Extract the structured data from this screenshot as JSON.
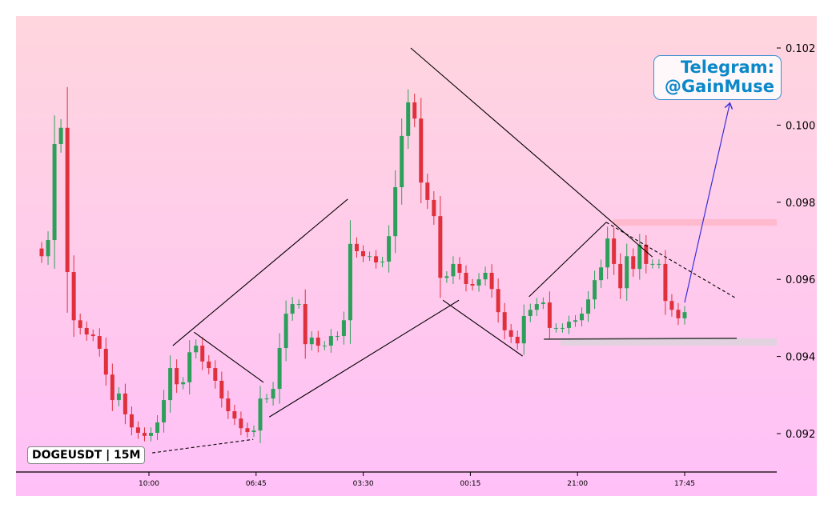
{
  "chart_data": {
    "type": "candlestick",
    "symbol_label": "DOGEUSDT | 15M",
    "ylim": [
      0.091,
      0.10283
    ],
    "y_ticks": [
      "0.092",
      "0.094",
      "0.096",
      "0.098",
      "0.100",
      "0.102"
    ],
    "x_ticks": [
      "10:00",
      "06:45",
      "03:30",
      "00:15",
      "21:00",
      "17:45"
    ],
    "grid": false,
    "colors": {
      "up": "#2ca05a",
      "down": "#e0303c",
      "background_top": "#ffd6de",
      "background_bottom": "#ffc0f8",
      "lines": "#000000",
      "arrow": "#3a2ee0",
      "resistance_zone": "#ffb6c8",
      "support_zone": "#ddd4dc",
      "telegram": "#0a88c8"
    },
    "close": [
      0.0966,
      0.09702,
      0.09951,
      0.09993,
      0.09619,
      0.09494,
      0.09474,
      0.09457,
      0.09453,
      0.0942,
      0.09353,
      0.09287,
      0.09304,
      0.0925,
      0.09216,
      0.09202,
      0.09194,
      0.09202,
      0.09229,
      0.09287,
      0.0937,
      0.09328,
      0.09333,
      0.09411,
      0.09428,
      0.09387,
      0.0937,
      0.09337,
      0.09291,
      0.09258,
      0.09239,
      0.09214,
      0.09204,
      0.09208,
      0.09291,
      0.09291,
      0.09316,
      0.09422,
      0.09511,
      0.09536,
      0.09536,
      0.09432,
      0.09449,
      0.09428,
      0.09428,
      0.09453,
      0.09453,
      0.09494,
      0.09692,
      0.09673,
      0.0966,
      0.0966,
      0.09644,
      0.09646,
      0.09712,
      0.09839,
      0.09972,
      0.10059,
      0.10017,
      0.09851,
      0.09806,
      0.09764,
      0.09604,
      0.09608,
      0.0964,
      0.09617,
      0.09588,
      0.09584,
      0.096,
      0.09617,
      0.09575,
      0.09515,
      0.09468,
      0.09451,
      0.09434,
      0.09505,
      0.09521,
      0.09536,
      0.0954,
      0.09474,
      0.09474,
      0.09474,
      0.0949,
      0.09494,
      0.09511,
      0.09548,
      0.09598,
      0.09631,
      0.09706,
      0.0964,
      0.09577,
      0.0966,
      0.09627,
      0.0969,
      0.0964,
      0.0964,
      0.0964,
      0.09544,
      0.09521,
      0.09499,
      0.09515
    ],
    "trendlines": [
      {
        "from": [
          20.4,
          0.09428
        ],
        "to": [
          47.6,
          0.09808
        ],
        "style": "solid"
      },
      {
        "from": [
          35.4,
          0.09243
        ],
        "to": [
          64.9,
          0.09546
        ],
        "style": "solid"
      },
      {
        "from": [
          23.7,
          0.09463
        ],
        "to": [
          34.5,
          0.09333
        ],
        "style": "solid"
      },
      {
        "from": [
          17.2,
          0.0915
        ],
        "to": [
          32.9,
          0.09185
        ],
        "style": "dashed"
      },
      {
        "from": [
          57.4,
          0.102
        ],
        "to": [
          95.0,
          0.09658
        ],
        "style": "solid"
      },
      {
        "from": [
          62.4,
          0.09546
        ],
        "to": [
          74.8,
          0.09401
        ],
        "style": "solid"
      },
      {
        "from": [
          75.8,
          0.09555
        ],
        "to": [
          87.8,
          0.09748
        ],
        "style": "solid"
      },
      {
        "from": [
          87.8,
          0.09748
        ],
        "to": [
          108.1,
          0.0955
        ],
        "style": "dashed"
      },
      {
        "from": [
          78.1,
          0.09445
        ],
        "to": [
          108.1,
          0.09447
        ],
        "style": "solid-grey"
      }
    ],
    "arrow": {
      "from": [
        100,
        0.0954
      ],
      "to": [
        107.0,
        0.10055
      ]
    },
    "zones": [
      {
        "kind": "resistance",
        "from_index": 88.9,
        "price_range": [
          0.09739,
          0.09756
        ]
      },
      {
        "kind": "support",
        "from_index": 80.7,
        "price_range": [
          0.09428,
          0.09447
        ]
      }
    ]
  },
  "watermark": {
    "line1": "Telegram:",
    "line2": "@GainMuse"
  }
}
